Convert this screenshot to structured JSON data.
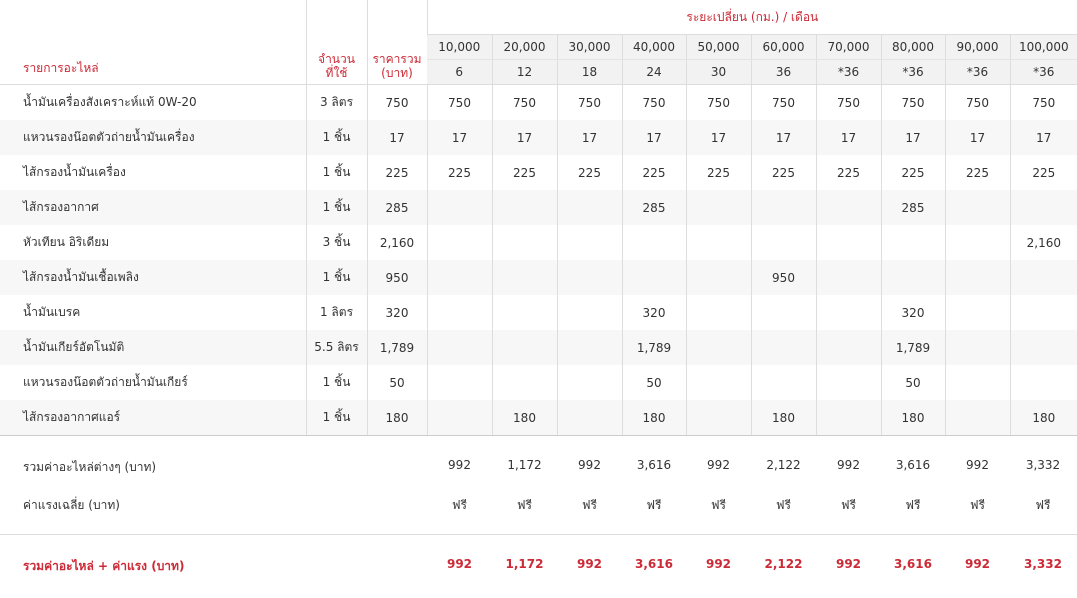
{
  "header": {
    "part_label": "รายการอะไหล่",
    "qty_label_line1": "จำนวน",
    "qty_label_line2": "ที่ใช้",
    "price_label_line1": "ราคารวม",
    "price_label_line2": "(บาท)",
    "interval_label": "ระยะเปลี่ยน (กม.) / เดือน",
    "km": [
      "10,000",
      "20,000",
      "30,000",
      "40,000",
      "50,000",
      "60,000",
      "70,000",
      "80,000",
      "90,000",
      "100,000"
    ],
    "months": [
      "6",
      "12",
      "18",
      "24",
      "30",
      "36",
      "*36",
      "*36",
      "*36",
      "*36"
    ]
  },
  "parts": [
    {
      "name": "น้ำมันเครื่องสังเคราะห์แท้ 0W-20",
      "qty": "3 ลิตร",
      "price": "750",
      "vals": [
        "750",
        "750",
        "750",
        "750",
        "750",
        "750",
        "750",
        "750",
        "750",
        "750"
      ]
    },
    {
      "name": "แหวนรองน๊อตตัวถ่ายน้ำมันเครื่อง",
      "qty": "1 ชิ้น",
      "price": "17",
      "vals": [
        "17",
        "17",
        "17",
        "17",
        "17",
        "17",
        "17",
        "17",
        "17",
        "17"
      ]
    },
    {
      "name": "ไส้กรองน้ำมันเครื่อง",
      "qty": "1 ชิ้น",
      "price": "225",
      "vals": [
        "225",
        "225",
        "225",
        "225",
        "225",
        "225",
        "225",
        "225",
        "225",
        "225"
      ]
    },
    {
      "name": "ไส้กรองอากาศ",
      "qty": "1 ชิ้น",
      "price": "285",
      "vals": [
        "",
        "",
        "",
        "285",
        "",
        "",
        "",
        "285",
        "",
        ""
      ]
    },
    {
      "name": "หัวเทียน อิริเดียม",
      "qty": "3 ชิ้น",
      "price": "2,160",
      "vals": [
        "",
        "",
        "",
        "",
        "",
        "",
        "",
        "",
        "",
        "2,160"
      ]
    },
    {
      "name": "ไส้กรองน้ำมันเชื้อเพลิง",
      "qty": "1 ชิ้น",
      "price": "950",
      "vals": [
        "",
        "",
        "",
        "",
        "",
        "950",
        "",
        "",
        "",
        ""
      ]
    },
    {
      "name": "น้ำมันเบรค",
      "qty": "1 ลิตร",
      "price": "320",
      "vals": [
        "",
        "",
        "",
        "320",
        "",
        "",
        "",
        "320",
        "",
        ""
      ]
    },
    {
      "name": "น้ำมันเกียร์อัตโนมัติ",
      "qty": "5.5 ลิตร",
      "price": "1,789",
      "vals": [
        "",
        "",
        "",
        "1,789",
        "",
        "",
        "",
        "1,789",
        "",
        ""
      ]
    },
    {
      "name": "แหวนรองน๊อตตัวถ่ายน้ำมันเกียร์",
      "qty": "1 ชิ้น",
      "price": "50",
      "vals": [
        "",
        "",
        "",
        "50",
        "",
        "",
        "",
        "50",
        "",
        ""
      ]
    },
    {
      "name": "ไส้กรองอากาศแอร์",
      "qty": "1 ชิ้น",
      "price": "180",
      "vals": [
        "",
        "180",
        "",
        "180",
        "",
        "180",
        "",
        "180",
        "",
        "180"
      ]
    }
  ],
  "summary": {
    "parts_total_label": "รวมค่าอะไหล่ต่างๆ (บาท)",
    "parts_total": [
      "992",
      "1,172",
      "992",
      "3,616",
      "992",
      "2,122",
      "992",
      "3,616",
      "992",
      "3,332"
    ],
    "labor_label": "ค่าแรงเฉลี่ย (บาท)",
    "labor": [
      "ฟรี",
      "ฟรี",
      "ฟรี",
      "ฟรี",
      "ฟรี",
      "ฟรี",
      "ฟรี",
      "ฟรี",
      "ฟรี",
      "ฟรี"
    ],
    "grand_total_label": "รวมค่าอะไหล่ + ค่าแรง (บาท)",
    "grand_total": [
      "992",
      "1,172",
      "992",
      "3,616",
      "992",
      "2,122",
      "992",
      "3,616",
      "992",
      "3,332"
    ]
  },
  "colors": {
    "accent": "#cc2a36",
    "stripe": "#f7f7f7",
    "header_bg": "#f2f2f2"
  }
}
